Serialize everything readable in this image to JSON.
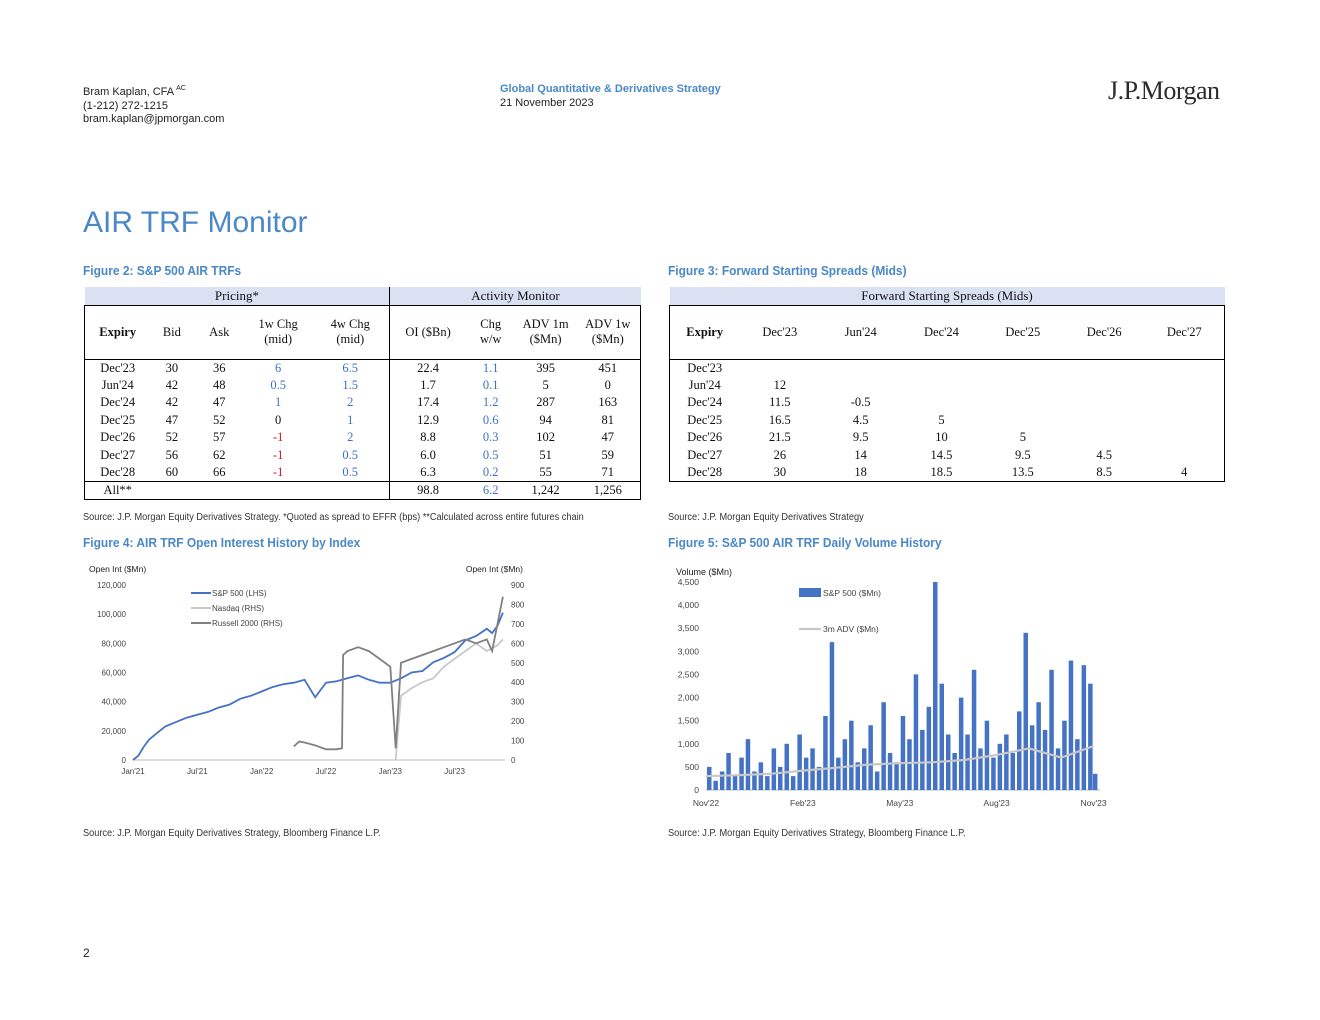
{
  "header": {
    "author_name": "Bram Kaplan, CFA",
    "author_sup": "AC",
    "phone": "(1-212) 272-1215",
    "email": "bram.kaplan@jpmorgan.com",
    "department": "Global Quantitative & Derivatives Strategy",
    "date": "21 November 2023",
    "logo": "J.P.Morgan"
  },
  "page_title": "AIR TRF Monitor",
  "fig2": {
    "title": "Figure 2: S&P 500 AIR TRFs",
    "band_pricing": "Pricing*",
    "band_activity": "Activity Monitor",
    "col_expiry": "Expiry",
    "col_bid": "Bid",
    "col_ask": "Ask",
    "col_1w_a": "1w Chg",
    "col_1w_b": "(mid)",
    "col_4w_a": "4w Chg",
    "col_4w_b": "(mid)",
    "col_oi": "OI ($Bn)",
    "col_chg_a": "Chg",
    "col_chg_b": "w/w",
    "col_adv1m_a": "ADV 1m",
    "col_adv1m_b": "($Mn)",
    "col_adv1w_a": "ADV 1w",
    "col_adv1w_b": "($Mn)",
    "rows": [
      {
        "expiry": "Dec'23",
        "bid": "30",
        "ask": "36",
        "chg1w": "6",
        "chg4w": "6.5",
        "oi": "22.4",
        "chgww": "1.1",
        "adv1m": "395",
        "adv1w": "451"
      },
      {
        "expiry": "Jun'24",
        "bid": "42",
        "ask": "48",
        "chg1w": "0.5",
        "chg4w": "1.5",
        "oi": "1.7",
        "chgww": "0.1",
        "adv1m": "5",
        "adv1w": "0"
      },
      {
        "expiry": "Dec'24",
        "bid": "42",
        "ask": "47",
        "chg1w": "1",
        "chg4w": "2",
        "oi": "17.4",
        "chgww": "1.2",
        "adv1m": "287",
        "adv1w": "163"
      },
      {
        "expiry": "Dec'25",
        "bid": "47",
        "ask": "52",
        "chg1w": "0",
        "chg4w": "1",
        "oi": "12.9",
        "chgww": "0.6",
        "adv1m": "94",
        "adv1w": "81"
      },
      {
        "expiry": "Dec'26",
        "bid": "52",
        "ask": "57",
        "chg1w": "-1",
        "chg4w": "2",
        "oi": "8.8",
        "chgww": "0.3",
        "adv1m": "102",
        "adv1w": "47"
      },
      {
        "expiry": "Dec'27",
        "bid": "56",
        "ask": "62",
        "chg1w": "-1",
        "chg4w": "0.5",
        "oi": "6.0",
        "chgww": "0.5",
        "adv1m": "51",
        "adv1w": "59"
      },
      {
        "expiry": "Dec'28",
        "bid": "60",
        "ask": "66",
        "chg1w": "-1",
        "chg4w": "0.5",
        "oi": "6.3",
        "chgww": "0.2",
        "adv1m": "55",
        "adv1w": "71"
      }
    ],
    "total": {
      "expiry": "All**",
      "oi": "98.8",
      "chgww": "6.2",
      "adv1m": "1,242",
      "adv1w": "1,256"
    },
    "source": "Source: J.P. Morgan Equity Derivatives Strategy. *Quoted as spread to EFFR (bps) **Calculated across entire futures chain",
    "colors": {
      "positive": "#3d72c4",
      "negative": "#d11a1a",
      "band": "#d9e1f2"
    }
  },
  "fig3": {
    "title": "Figure 3: Forward Starting Spreads (Mids)",
    "band": "Forward Starting Spreads (Mids)",
    "col_expiry": "Expiry",
    "cols": [
      "Dec'23",
      "Jun'24",
      "Dec'24",
      "Dec'25",
      "Dec'26",
      "Dec'27"
    ],
    "rows": [
      {
        "expiry": "Dec'23",
        "v": [
          "",
          "",
          "",
          "",
          "",
          ""
        ]
      },
      {
        "expiry": "Jun'24",
        "v": [
          "12",
          "",
          "",
          "",
          "",
          ""
        ]
      },
      {
        "expiry": "Dec'24",
        "v": [
          "11.5",
          "-0.5",
          "",
          "",
          "",
          ""
        ]
      },
      {
        "expiry": "Dec'25",
        "v": [
          "16.5",
          "4.5",
          "5",
          "",
          "",
          ""
        ]
      },
      {
        "expiry": "Dec'26",
        "v": [
          "21.5",
          "9.5",
          "10",
          "5",
          "",
          ""
        ]
      },
      {
        "expiry": "Dec'27",
        "v": [
          "26",
          "14",
          "14.5",
          "9.5",
          "4.5",
          ""
        ]
      },
      {
        "expiry": "Dec'28",
        "v": [
          "30",
          "18",
          "18.5",
          "13.5",
          "8.5",
          "4"
        ]
      }
    ],
    "source": "Source: J.P. Morgan Equity Derivatives Strategy"
  },
  "fig4": {
    "title": "Figure 4: AIR TRF Open Interest History by Index",
    "source": "Source: J.P. Morgan Equity Derivatives Strategy, Bloomberg Finance L.P."
  },
  "fig5": {
    "title": "Figure 5: S&P 500 AIR TRF Daily Volume History",
    "source": "Source: J.P. Morgan Equity Derivatives Strategy, Bloomberg Finance L.P."
  },
  "page_number": "2",
  "chart_data": [
    {
      "type": "line",
      "ylabel_left": "Open Int ($Mn)",
      "ylabel_right": "Open Int ($Mn)",
      "x_tick_labels": [
        "Jan'21",
        "Jul'21",
        "Jan'22",
        "Jul'22",
        "Jan'23",
        "Jul'23"
      ],
      "x_tick_positions": [
        0,
        6,
        12,
        18,
        24,
        30
      ],
      "ylim_left": [
        0,
        120000
      ],
      "yticks_left": [
        0,
        20000,
        40000,
        60000,
        80000,
        100000,
        120000
      ],
      "ytick_labels_left": [
        "0",
        "20,000",
        "40,000",
        "60,000",
        "80,000",
        "100,000",
        "120,000"
      ],
      "ylim_right": [
        0,
        900
      ],
      "yticks_right": [
        0,
        100,
        200,
        300,
        400,
        500,
        600,
        700,
        800,
        900
      ],
      "xlim": [
        0,
        34.7
      ],
      "legend": "top-left",
      "grid": false,
      "series": [
        {
          "name": "S&P 500 (LHS)",
          "axis": "left",
          "color": "#4472c4",
          "x": [
            0,
            0.5,
            1,
            1.5,
            2,
            2.5,
            3,
            4,
            5,
            6,
            7,
            8,
            9,
            10,
            11,
            12,
            13,
            14,
            15,
            16,
            17,
            17.5,
            18,
            19,
            20,
            21,
            22,
            23,
            24,
            25,
            26,
            27,
            28,
            29,
            30,
            30.5,
            31,
            32,
            33,
            33.5,
            34,
            34.5
          ],
          "y": [
            0,
            3000,
            9000,
            14000,
            17000,
            20000,
            23000,
            26000,
            29000,
            31000,
            33000,
            36000,
            38000,
            42000,
            44000,
            47000,
            50000,
            52000,
            53000,
            55000,
            43000,
            48000,
            53000,
            54000,
            56000,
            58000,
            55000,
            53000,
            53000,
            56000,
            60000,
            61000,
            67000,
            70000,
            74000,
            78000,
            82000,
            85000,
            90000,
            87000,
            92000,
            101000
          ]
        },
        {
          "name": "Nasdaq (RHS)",
          "axis": "right",
          "color": "#c8c8c8",
          "x": [
            24.5,
            25,
            26,
            27,
            28,
            29,
            30,
            31,
            32,
            33,
            34,
            34.5
          ],
          "y": [
            0,
            330,
            370,
            400,
            420,
            480,
            520,
            560,
            600,
            560,
            590,
            620
          ]
        },
        {
          "name": "Russell 2000 (RHS)",
          "axis": "right",
          "color": "#808080",
          "x": [
            15,
            15.5,
            16,
            17,
            18,
            19,
            19.5,
            19.6,
            20,
            21,
            22,
            23,
            24,
            24.5,
            25,
            26,
            27,
            28,
            29,
            30,
            31,
            32,
            33,
            33.5,
            34,
            34.5
          ],
          "y": [
            70,
            95,
            90,
            75,
            55,
            55,
            60,
            540,
            560,
            580,
            560,
            520,
            480,
            60,
            500,
            520,
            540,
            560,
            580,
            600,
            620,
            600,
            620,
            560,
            700,
            840
          ]
        }
      ]
    },
    {
      "type": "bar",
      "ylabel": "Volume ($Mn)",
      "x_tick_labels": [
        "Nov'22",
        "Feb'23",
        "May'23",
        "Aug'23",
        "Nov'23"
      ],
      "x_tick_positions": [
        0,
        3,
        6,
        9,
        12
      ],
      "ylim": [
        0,
        4500
      ],
      "yticks": [
        0,
        500,
        1000,
        1500,
        2000,
        2500,
        3000,
        3500,
        4000,
        4500
      ],
      "ytick_labels": [
        "0",
        "500",
        "1,000",
        "1,500",
        "2,000",
        "2,500",
        "3,000",
        "3,500",
        "4,000",
        "4,500"
      ],
      "xlim": [
        0,
        12.2
      ],
      "legend": "top-center",
      "grid": false,
      "series": [
        {
          "name": "S&P 500 ($Mn)",
          "color": "#4472c4",
          "kind": "bar",
          "x": [
            0.1,
            0.3,
            0.5,
            0.7,
            0.9,
            1.1,
            1.3,
            1.5,
            1.7,
            1.9,
            2.1,
            2.3,
            2.5,
            2.7,
            2.9,
            3.1,
            3.3,
            3.5,
            3.7,
            3.9,
            4.1,
            4.3,
            4.5,
            4.7,
            4.9,
            5.1,
            5.3,
            5.5,
            5.7,
            5.9,
            6.1,
            6.3,
            6.5,
            6.7,
            6.9,
            7.1,
            7.3,
            7.5,
            7.7,
            7.9,
            8.1,
            8.3,
            8.5,
            8.7,
            8.9,
            9.1,
            9.3,
            9.5,
            9.7,
            9.9,
            10.1,
            10.3,
            10.5,
            10.7,
            10.9,
            11.1,
            11.3,
            11.5,
            11.7,
            11.9,
            12.05
          ],
          "y": [
            500,
            200,
            400,
            800,
            300,
            700,
            1100,
            400,
            600,
            300,
            900,
            500,
            1000,
            300,
            1200,
            700,
            900,
            500,
            1600,
            3200,
            700,
            1100,
            1500,
            600,
            900,
            1400,
            400,
            1900,
            800,
            600,
            1600,
            1100,
            2500,
            1300,
            1800,
            4500,
            2300,
            1200,
            800,
            2000,
            1200,
            2600,
            900,
            1500,
            700,
            1000,
            1200,
            800,
            1700,
            3400,
            1400,
            1900,
            1300,
            2600,
            900,
            1500,
            2800,
            1100,
            2700,
            2300,
            350
          ]
        },
        {
          "name": "3m ADV ($Mn)",
          "color": "#c8c8c8",
          "kind": "line",
          "x": [
            0,
            1,
            2,
            3,
            4,
            5,
            6,
            7,
            8,
            9,
            10,
            11,
            12
          ],
          "y": [
            300,
            320,
            350,
            420,
            480,
            550,
            580,
            600,
            650,
            760,
            900,
            700,
            950
          ]
        }
      ]
    }
  ]
}
